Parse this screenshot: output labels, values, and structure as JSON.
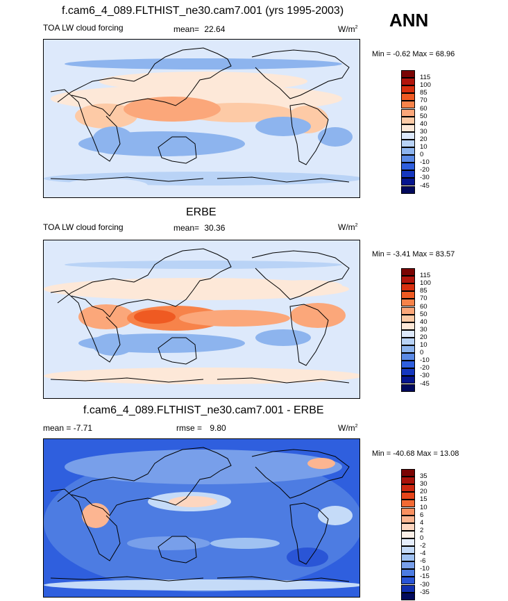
{
  "season": "ANN",
  "panels": [
    {
      "title": "f.cam6_4_089.FLTHIST_ne30.cam7.001 (yrs 1995-2003)",
      "left_label": "TOA LW cloud forcing",
      "stat_label": "mean=",
      "stat_value": "22.64",
      "units": "W/m",
      "units_exp": "2",
      "minmax": "Min =  -0.62 Max =  68.96",
      "field": "model"
    },
    {
      "title": "ERBE",
      "left_label": "TOA LW cloud forcing",
      "stat_label": "mean=",
      "stat_value": "30.36",
      "units": "W/m",
      "units_exp": "2",
      "minmax": "Min =  -3.41 Max =  83.57",
      "field": "obs"
    },
    {
      "title": "f.cam6_4_089.FLTHIST_ne30.cam7.001 - ERBE",
      "left_label": "mean =  -7.71",
      "stat_label": "rmse =",
      "stat_value": "9.80",
      "units": "W/m",
      "units_exp": "2",
      "minmax": "Min = -40.68 Max =  13.08",
      "field": "diff"
    }
  ],
  "colorbars": {
    "abs": {
      "labels": [
        "115",
        "100",
        "85",
        "70",
        "60",
        "50",
        "40",
        "30",
        "20",
        "10",
        "0",
        "-10",
        "-20",
        "-30",
        "-45"
      ],
      "colors": [
        "#7a0403",
        "#b2150c",
        "#d8300f",
        "#ef5a22",
        "#f7834a",
        "#fba77a",
        "#fdcaa6",
        "#fde8d8",
        "#dde9fb",
        "#b9d3f6",
        "#8db4ee",
        "#5b8ae6",
        "#2f5fde",
        "#1537bf",
        "#06168f",
        "#020a5c"
      ]
    },
    "diff": {
      "labels": [
        "35",
        "30",
        "20",
        "15",
        "10",
        "6",
        "4",
        "2",
        "0",
        "-2",
        "-4",
        "-6",
        "-10",
        "-15",
        "-30",
        "-35"
      ],
      "colors": [
        "#7a0403",
        "#a8120a",
        "#cc2810",
        "#e6451a",
        "#f36a34",
        "#f99060",
        "#fcb591",
        "#fdd6c0",
        "#fdf0e8",
        "#e6eefc",
        "#c5dbf8",
        "#a0c2f2",
        "#789fea",
        "#4d7ce2",
        "#2a55d6",
        "#1230b0",
        "#020a5c"
      ]
    }
  }
}
